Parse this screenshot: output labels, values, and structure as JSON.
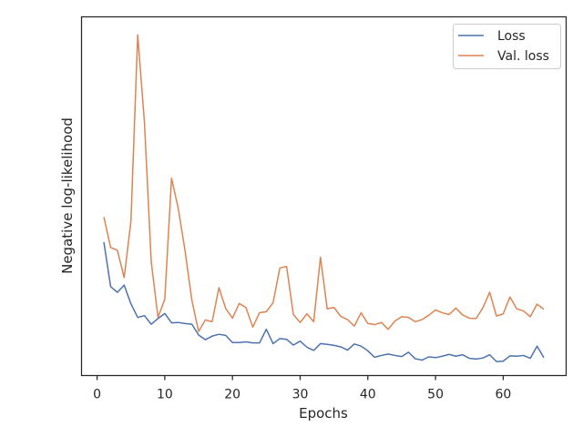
{
  "chart_data": {
    "type": "line",
    "xlabel": "Epochs",
    "ylabel": "Negative log-likelihood",
    "xlim": [
      -2.3,
      69.3
    ],
    "ylim": [
      0,
      100
    ],
    "xticks": [
      0,
      10,
      20,
      30,
      40,
      50,
      60
    ],
    "yscale": "unlabeled",
    "grid": false,
    "legend_position": "top-right",
    "x": [
      1,
      2,
      3,
      4,
      5,
      6,
      7,
      8,
      9,
      10,
      11,
      12,
      13,
      14,
      15,
      16,
      17,
      18,
      19,
      20,
      21,
      22,
      23,
      24,
      25,
      26,
      27,
      28,
      29,
      30,
      31,
      32,
      33,
      34,
      35,
      36,
      37,
      38,
      39,
      40,
      41,
      42,
      43,
      44,
      45,
      46,
      47,
      48,
      49,
      50,
      51,
      52,
      53,
      54,
      55,
      56,
      57,
      58,
      59,
      60,
      61,
      62,
      63,
      64,
      65,
      66
    ],
    "series": [
      {
        "name": "Loss",
        "color": "#4c72b0",
        "values": [
          37.2,
          24.8,
          23.2,
          25.2,
          20.0,
          16.2,
          16.7,
          14.3,
          15.9,
          17.3,
          14.7,
          14.8,
          14.5,
          14.3,
          11.3,
          10.0,
          11.0,
          11.5,
          11.2,
          9.2,
          9.2,
          9.4,
          9.1,
          9.1,
          12.9,
          8.9,
          10.3,
          10.1,
          8.5,
          9.6,
          7.9,
          7.0,
          8.9,
          8.7,
          8.4,
          8.0,
          7.1,
          8.8,
          8.2,
          6.9,
          5.1,
          5.6,
          6.0,
          5.6,
          5.3,
          6.5,
          4.7,
          4.3,
          5.2,
          5.0,
          5.4,
          5.9,
          5.4,
          5.8,
          4.8,
          4.6,
          4.9,
          5.8,
          3.9,
          4.0,
          5.5,
          5.4,
          5.6,
          4.8,
          8.2,
          5.0
        ]
      },
      {
        "name": "Val. loss",
        "color": "#dd8452",
        "values": [
          44.2,
          35.7,
          34.9,
          27.3,
          43.0,
          95.0,
          70.5,
          31.7,
          16.2,
          21.3,
          55.0,
          46.5,
          34.7,
          21.0,
          12.3,
          15.5,
          15.0,
          24.5,
          18.7,
          16.0,
          20.1,
          18.9,
          13.5,
          17.5,
          17.8,
          20.3,
          30.0,
          30.4,
          17.0,
          14.8,
          17.2,
          15.0,
          33.0,
          18.6,
          19.0,
          16.5,
          15.6,
          13.8,
          17.5,
          14.5,
          14.2,
          14.8,
          12.9,
          15.2,
          16.4,
          16.2,
          15.0,
          15.6,
          16.8,
          18.3,
          17.5,
          17.0,
          18.8,
          16.9,
          16.0,
          15.9,
          18.9,
          23.2,
          16.6,
          17.2,
          21.9,
          18.6,
          18.0,
          16.4,
          19.9,
          18.5
        ]
      }
    ]
  }
}
